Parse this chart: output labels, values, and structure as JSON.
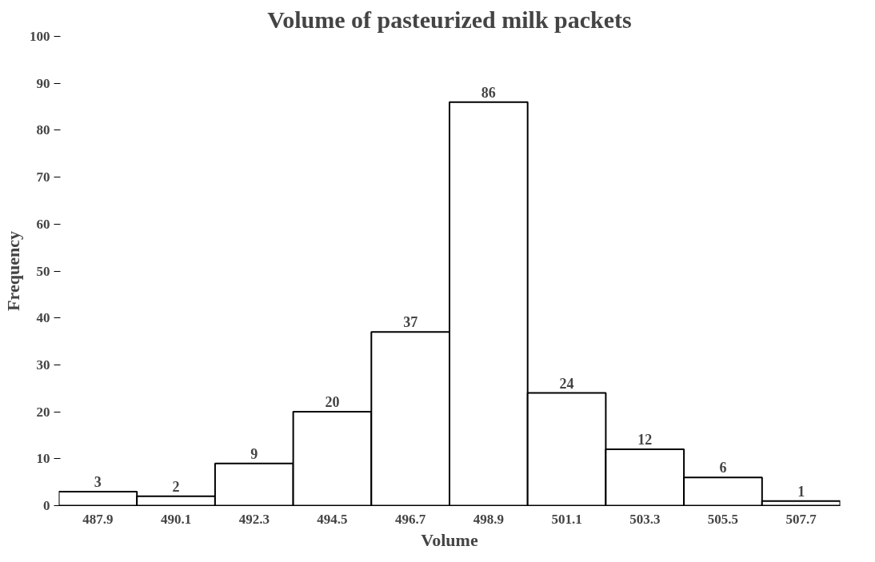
{
  "chart_data": {
    "type": "bar",
    "title": "Volume of pasteurized milk packets",
    "xlabel": "Volume",
    "ylabel": "Frequency",
    "categories": [
      "487.9",
      "490.1",
      "492.3",
      "494.5",
      "496.7",
      "498.9",
      "501.1",
      "503.3",
      "505.5",
      "507.7"
    ],
    "values": [
      3,
      2,
      9,
      20,
      37,
      86,
      24,
      12,
      6,
      1
    ],
    "color": "#ffffff",
    "ylim": [
      0,
      100
    ],
    "yticks": [
      0,
      10,
      20,
      30,
      40,
      50,
      60,
      70,
      80,
      90,
      100
    ],
    "grid": false,
    "data_labels": true
  }
}
